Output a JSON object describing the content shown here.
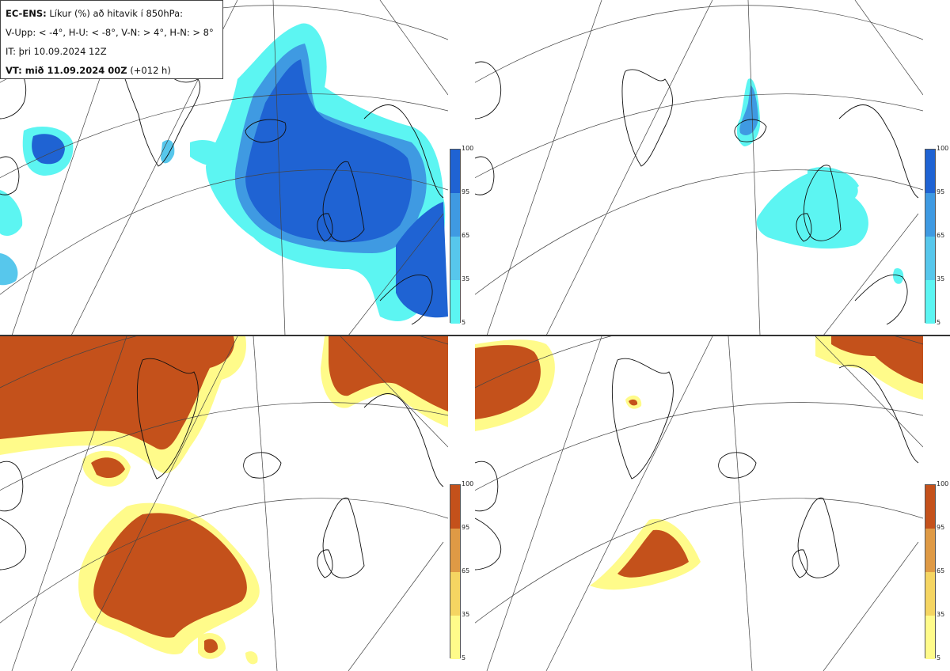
{
  "legend": {
    "model": "EC-ENS:",
    "title": "Líkur (%) að hitavik í 850hPa:",
    "thresholds": "V-Upp: < -4°, H-U: < -8°, V-N: > 4°, H-N: > 8°",
    "issue_time": "IT: þri 10.09.2024 12Z",
    "valid_label": "VT: mið 11.09.2024 00Z",
    "valid_offset": "(+012 h)"
  },
  "colorbar_ticks": [
    "100",
    "95",
    "65",
    "35",
    "5"
  ],
  "colors": {
    "cold": [
      "#5cf5f2",
      "#57c7ec",
      "#3f9ae2",
      "#1f63d3"
    ],
    "warm": [
      "#fffb8a",
      "#f5d562",
      "#df9a45",
      "#c4511b"
    ],
    "coast": "#111111",
    "grid": "#444444"
  },
  "panels": [
    {
      "id": "V-Upp",
      "palette": "cold"
    },
    {
      "id": "H-U",
      "palette": "cold"
    },
    {
      "id": "V-N",
      "palette": "warm"
    },
    {
      "id": "H-N",
      "palette": "warm"
    }
  ]
}
